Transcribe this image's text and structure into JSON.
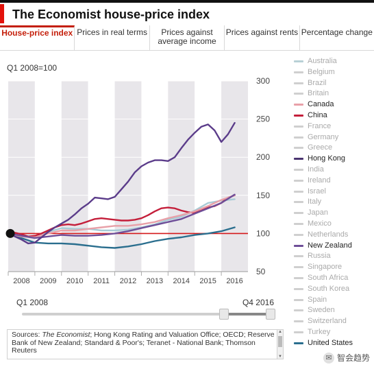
{
  "title": "The Economist house-price index",
  "tabs": [
    {
      "label": "House-price index",
      "active": true
    },
    {
      "label": "Prices in real terms",
      "active": false
    },
    {
      "label": "Prices against average income",
      "active": false
    },
    {
      "label": "Prices against rents",
      "active": false
    },
    {
      "label": "Percentage change",
      "active": false
    }
  ],
  "chart_data": {
    "type": "line",
    "subtitle": "Q1 2008=100",
    "ylim": [
      50,
      300
    ],
    "yticks": [
      50,
      100,
      150,
      200,
      250,
      300
    ],
    "xlim": [
      2008.0,
      2017.0
    ],
    "x_tick_labels": [
      "2008",
      "2009",
      "2010",
      "2011",
      "2012",
      "2013",
      "2014",
      "2015",
      "2016"
    ],
    "baseline": 100,
    "start_marker": {
      "x": 2008.0,
      "y": 100
    },
    "grid": "alternating vertical bands per year",
    "series": [
      {
        "name": "Hong Kong",
        "color": "#5b3c8a",
        "x": [
          2008.0,
          2008.25,
          2008.5,
          2008.75,
          2009.0,
          2009.25,
          2009.5,
          2009.75,
          2010.0,
          2010.25,
          2010.5,
          2010.75,
          2011.0,
          2011.25,
          2011.5,
          2011.75,
          2012.0,
          2012.25,
          2012.5,
          2012.75,
          2013.0,
          2013.25,
          2013.5,
          2013.75,
          2014.0,
          2014.25,
          2014.5,
          2014.75,
          2015.0,
          2015.25,
          2015.5,
          2015.75,
          2016.0,
          2016.25,
          2016.5
        ],
        "y": [
          100,
          96,
          92,
          87,
          88,
          95,
          102,
          108,
          113,
          118,
          125,
          133,
          139,
          147,
          146,
          145,
          148,
          158,
          168,
          180,
          188,
          193,
          196,
          196,
          195,
          200,
          212,
          223,
          232,
          240,
          243,
          235,
          220,
          230,
          245
        ]
      },
      {
        "name": "New Zealand",
        "color": "#6e4e98",
        "x": [
          2008.0,
          2008.5,
          2009.0,
          2009.5,
          2010.0,
          2010.5,
          2011.0,
          2011.5,
          2012.0,
          2012.5,
          2013.0,
          2013.5,
          2014.0,
          2014.5,
          2015.0,
          2015.5,
          2016.0,
          2016.5
        ],
        "y": [
          100,
          97,
          94,
          96,
          98,
          97,
          97,
          98,
          100,
          103,
          107,
          111,
          115,
          119,
          126,
          133,
          140,
          151
        ]
      },
      {
        "name": "Canada",
        "color": "#e8a0a8",
        "x": [
          2008.0,
          2008.5,
          2009.0,
          2009.5,
          2010.0,
          2010.5,
          2011.0,
          2011.5,
          2012.0,
          2012.5,
          2013.0,
          2013.5,
          2014.0,
          2014.5,
          2015.0,
          2015.5,
          2016.0,
          2016.5
        ],
        "y": [
          100,
          96,
          95,
          100,
          104,
          104,
          106,
          108,
          110,
          110,
          112,
          115,
          120,
          124,
          129,
          136,
          144,
          150
        ]
      },
      {
        "name": "China",
        "color": "#c41e3a",
        "x": [
          2008.0,
          2008.25,
          2008.5,
          2008.75,
          2009.0,
          2009.25,
          2009.5,
          2009.75,
          2010.0,
          2010.25,
          2010.5,
          2010.75,
          2011.0,
          2011.25,
          2011.5,
          2011.75,
          2012.0,
          2012.25,
          2012.5,
          2012.75,
          2013.0,
          2013.25,
          2013.5,
          2013.75,
          2014.0,
          2014.25,
          2014.5,
          2014.75,
          2015.0,
          2015.25,
          2015.5,
          2015.75,
          2016.0,
          2016.25,
          2016.5
        ],
        "y": [
          100,
          101,
          99,
          96,
          97,
          100,
          104,
          108,
          111,
          112,
          111,
          113,
          116,
          119,
          120,
          119,
          118,
          117,
          117,
          118,
          120,
          124,
          129,
          133,
          134,
          133,
          130,
          128,
          127,
          130,
          134,
          136,
          140,
          147,
          150
        ]
      },
      {
        "name": "Australia",
        "color": "#a8cbd6",
        "x": [
          2008.0,
          2008.5,
          2009.0,
          2009.5,
          2010.0,
          2010.5,
          2011.0,
          2011.5,
          2012.0,
          2012.5,
          2013.0,
          2013.5,
          2014.0,
          2014.5,
          2015.0,
          2015.5,
          2016.0,
          2016.5
        ],
        "y": [
          100,
          96,
          95,
          102,
          107,
          106,
          106,
          104,
          104,
          105,
          108,
          112,
          118,
          122,
          130,
          140,
          143,
          145
        ]
      },
      {
        "name": "United States",
        "color": "#2a6e8e",
        "x": [
          2008.0,
          2008.5,
          2009.0,
          2009.5,
          2010.0,
          2010.5,
          2011.0,
          2011.5,
          2012.0,
          2012.5,
          2013.0,
          2013.5,
          2014.0,
          2014.5,
          2015.0,
          2015.5,
          2016.0,
          2016.5
        ],
        "y": [
          100,
          94,
          88,
          87,
          87,
          86,
          84,
          82,
          81,
          83,
          86,
          90,
          93,
          95,
          98,
          100,
          103,
          108
        ]
      }
    ],
    "legend": [
      {
        "name": "Australia",
        "color": "#b8d0d6",
        "on": false
      },
      {
        "name": "Belgium",
        "color": "#cfcfcf",
        "on": false
      },
      {
        "name": "Brazil",
        "color": "#cfcfcf",
        "on": false
      },
      {
        "name": "Britain",
        "color": "#cfcfcf",
        "on": false
      },
      {
        "name": "Canada",
        "color": "#e8a0a8",
        "on": true
      },
      {
        "name": "China",
        "color": "#c41e3a",
        "on": true
      },
      {
        "name": "France",
        "color": "#cfcfcf",
        "on": false
      },
      {
        "name": "Germany",
        "color": "#cfcfcf",
        "on": false
      },
      {
        "name": "Greece",
        "color": "#cfcfcf",
        "on": false
      },
      {
        "name": "Hong Kong",
        "color": "#4a3470",
        "on": true
      },
      {
        "name": "India",
        "color": "#cfcfcf",
        "on": false
      },
      {
        "name": "Ireland",
        "color": "#cfcfcf",
        "on": false
      },
      {
        "name": "Israel",
        "color": "#cfcfcf",
        "on": false
      },
      {
        "name": "Italy",
        "color": "#cfcfcf",
        "on": false
      },
      {
        "name": "Japan",
        "color": "#cfcfcf",
        "on": false
      },
      {
        "name": "Mexico",
        "color": "#cfcfcf",
        "on": false
      },
      {
        "name": "Netherlands",
        "color": "#cfcfcf",
        "on": false
      },
      {
        "name": "New Zealand",
        "color": "#6e4e98",
        "on": true
      },
      {
        "name": "Russia",
        "color": "#cfcfcf",
        "on": false
      },
      {
        "name": "Singapore",
        "color": "#cfcfcf",
        "on": false
      },
      {
        "name": "South Africa",
        "color": "#cfcfcf",
        "on": false
      },
      {
        "name": "South Korea",
        "color": "#cfcfcf",
        "on": false
      },
      {
        "name": "Spain",
        "color": "#cfcfcf",
        "on": false
      },
      {
        "name": "Sweden",
        "color": "#cfcfcf",
        "on": false
      },
      {
        "name": "Switzerland",
        "color": "#cfcfcf",
        "on": false
      },
      {
        "name": "Turkey",
        "color": "#cfcfcf",
        "on": false
      },
      {
        "name": "United States",
        "color": "#2a6e8e",
        "on": true
      }
    ]
  },
  "range": {
    "start_label": "Q1 2008",
    "end_label": "Q4 2016"
  },
  "sources": {
    "prefix": "Sources: ",
    "italic": "The Economist",
    "rest": "; Hong Kong Rating and Valuation Office; OECD; Reserve Bank of New Zealand; Standard & Poor's; Teranet - National Bank; Thomson Reuters"
  },
  "watermark": {
    "logo_icon": "chat-bubble-icon",
    "text": "智会趋势"
  }
}
